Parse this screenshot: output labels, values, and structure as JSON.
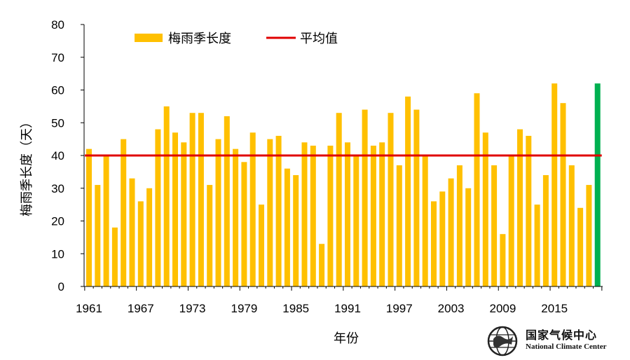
{
  "chart_data": {
    "type": "bar",
    "title": "",
    "ylabel": "梅雨季长度（天）",
    "xlabel": "年份",
    "ylim": [
      0,
      80
    ],
    "yticks": [
      "0",
      "10",
      "20",
      "30",
      "40",
      "50",
      "60",
      "70",
      "80"
    ],
    "xtick_labels": [
      "1961",
      "1967",
      "1973",
      "1979",
      "1985",
      "1991",
      "1997",
      "2003",
      "2009",
      "2015"
    ],
    "categories": [
      1961,
      1962,
      1963,
      1964,
      1965,
      1966,
      1967,
      1968,
      1969,
      1970,
      1971,
      1972,
      1973,
      1974,
      1975,
      1976,
      1977,
      1978,
      1979,
      1980,
      1981,
      1982,
      1983,
      1984,
      1985,
      1986,
      1987,
      1988,
      1989,
      1990,
      1991,
      1992,
      1993,
      1994,
      1995,
      1996,
      1997,
      1998,
      1999,
      2000,
      2001,
      2002,
      2003,
      2004,
      2005,
      2006,
      2007,
      2008,
      2009,
      2010,
      2011,
      2012,
      2013,
      2014,
      2015,
      2016,
      2017,
      2018,
      2019,
      2020
    ],
    "series": [
      {
        "name": "梅雨季长度",
        "color": "#FFC000",
        "highlight_color": "#00B050",
        "values": [
          42,
          31,
          40,
          18,
          45,
          33,
          26,
          30,
          48,
          55,
          47,
          44,
          53,
          53,
          31,
          45,
          52,
          42,
          38,
          47,
          25,
          45,
          46,
          36,
          34,
          44,
          43,
          13,
          43,
          53,
          44,
          40,
          54,
          43,
          44,
          53,
          37,
          58,
          54,
          40,
          26,
          29,
          33,
          37,
          30,
          59,
          47,
          37,
          16,
          40,
          48,
          46,
          25,
          34,
          62,
          56,
          37,
          24,
          31,
          62
        ]
      }
    ],
    "reference_line": {
      "name": "平均值",
      "value": 40,
      "color": "#E00000"
    },
    "legend": {
      "position": "top-left"
    }
  },
  "logo": {
    "name_cn": "国家气候中心",
    "name_en": "National Climate Center"
  }
}
